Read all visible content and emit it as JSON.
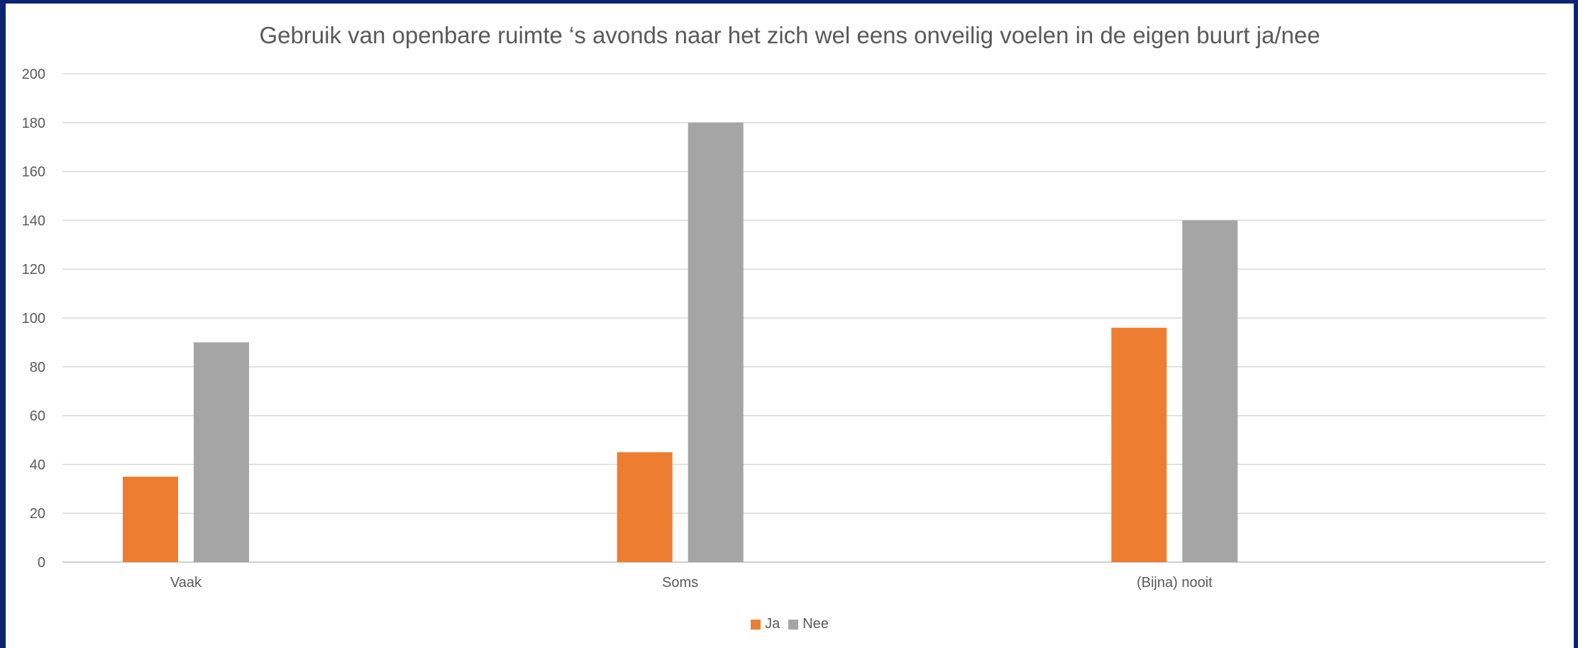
{
  "chart_data": {
    "type": "bar",
    "title": "Gebruik van openbare ruimte ‘s avonds naar het zich wel eens onveilig voelen in de eigen buurt ja/nee",
    "categories": [
      "Vaak",
      "Soms",
      "(Bijna) nooit"
    ],
    "series": [
      {
        "name": "Ja",
        "color": "#ed7d31",
        "values": [
          35,
          45,
          96
        ]
      },
      {
        "name": "Nee",
        "color": "#a5a5a5",
        "values": [
          90,
          180,
          140
        ]
      }
    ],
    "ylim": [
      0,
      200
    ],
    "yticks": [
      "0",
      "20",
      "40",
      "60",
      "80",
      "100",
      "120",
      "140",
      "160",
      "180",
      "200"
    ],
    "grid": true,
    "legend_position": "bottom"
  }
}
